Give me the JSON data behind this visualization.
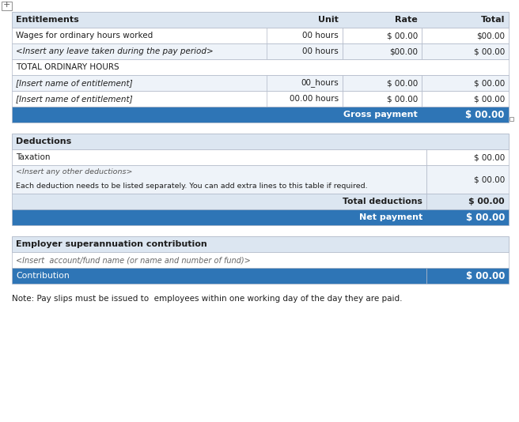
{
  "bg_color": "#ffffff",
  "hbl": "#dce6f1",
  "hbd": "#2e75b6",
  "white": "#ffffff",
  "light": "#eef3f9",
  "border": "#b0b8c8",
  "text_dark": "#1f1f1f",
  "text_white": "#ffffff",
  "t1_title": "Entitlements",
  "t1_cols": [
    "Unit",
    "Rate",
    "Total"
  ],
  "t1_rows": [
    [
      "Wages for ordinary hours worked",
      "00 hours",
      "$ 00.00",
      "$00.00",
      false
    ],
    [
      "<Insert any leave taken during the pay period>",
      "00 hours",
      "$00.00",
      "$ 00.00",
      true
    ],
    [
      "TOTAL ORDINARY HOURS",
      "",
      "",
      "",
      false
    ],
    [
      "[Insert name of entitlement]",
      "00_hours",
      "$ 00.00",
      "$ 00.00",
      true
    ],
    [
      "[Insert name of entitlement]",
      "00.00 hours",
      "$ 00.00",
      "$ 00.00",
      false
    ]
  ],
  "gross_label": "Gross payment",
  "gross_value": "$ 00.00",
  "t2_title": "Deductions",
  "t2_row0": [
    "Taxation",
    "$ 00.00"
  ],
  "t2_row1_line1": "<Insert any other deductions>",
  "t2_row1_line2": "Each deduction needs to be listed separately. You can add extra lines to this table if required.",
  "t2_row1_val": "$ 00.00",
  "t2_row2": [
    "Total deductions",
    "$ 00.00"
  ],
  "t2_row3": [
    "Net payment",
    "$ 00.00"
  ],
  "t3_title": "Employer superannuation contribution",
  "t3_row0": "<Insert  account/fund name (or name and number of fund)>",
  "t3_row1_label": "Contribution",
  "t3_row1_val": "$ 00.00",
  "note": "Note: Pay slips must be issued to  employees within one working day of the day they are paid.",
  "fig_w": 6.56,
  "fig_h": 5.34,
  "dpi": 100
}
